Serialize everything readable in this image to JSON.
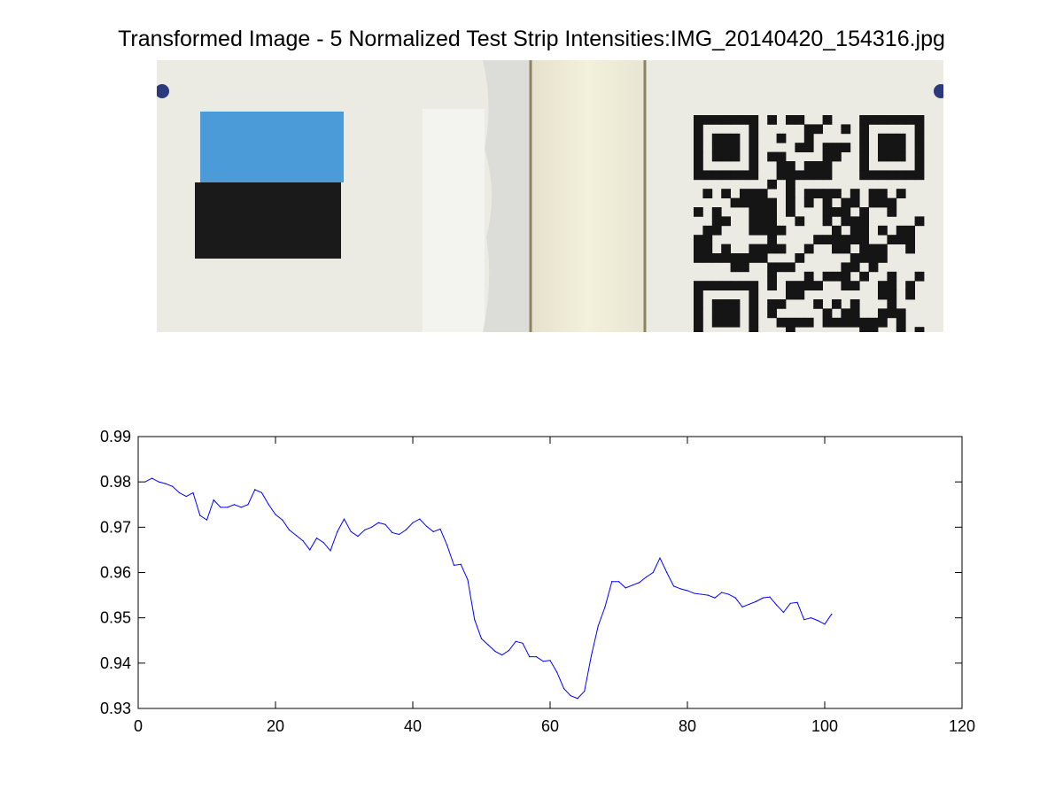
{
  "figure": {
    "title": "Transformed Image - 5 Normalized Test Strip Intensities:IMG_20140420_154316.jpg"
  },
  "photo": {
    "colors": {
      "paper": "#ecebe3",
      "blue_square": "#4a9bd8",
      "black_square": "#1a1a1a",
      "strip_window": "#f2efd9",
      "qr_module": "#151515"
    }
  },
  "chart_data": {
    "type": "line",
    "title": "",
    "xlabel": "",
    "ylabel": "",
    "xlim": [
      0,
      120
    ],
    "ylim": [
      0.93,
      0.99
    ],
    "xticks": [
      "0",
      "20",
      "40",
      "60",
      "80",
      "100",
      "120"
    ],
    "yticks": [
      "0.93",
      "0.94",
      "0.95",
      "0.96",
      "0.97",
      "0.98",
      "0.99"
    ],
    "grid": false,
    "legend": "none",
    "series": [
      {
        "color": "#0000ff",
        "x": [
          1,
          2,
          3,
          4,
          5,
          6,
          7,
          8,
          9,
          10,
          11,
          12,
          13,
          14,
          15,
          16,
          17,
          18,
          19,
          20,
          21,
          22,
          23,
          24,
          25,
          26,
          27,
          28,
          29,
          30,
          31,
          32,
          33,
          34,
          35,
          36,
          37,
          38,
          39,
          40,
          41,
          42,
          43,
          44,
          45,
          46,
          47,
          48,
          49,
          50,
          51,
          52,
          53,
          54,
          55,
          56,
          57,
          58,
          59,
          60,
          61,
          62,
          63,
          64,
          65,
          66,
          67,
          68,
          69,
          70,
          71,
          72,
          73,
          74,
          75,
          76,
          77,
          78,
          79,
          80,
          81,
          82,
          83,
          84,
          85,
          86,
          87,
          88,
          89,
          90,
          91,
          92,
          93,
          94,
          95,
          96,
          97,
          98,
          99,
          100,
          101
        ],
        "y": [
          0.98,
          0.9808,
          0.98,
          0.9796,
          0.979,
          0.9776,
          0.9768,
          0.9776,
          0.9726,
          0.9716,
          0.976,
          0.9744,
          0.9744,
          0.975,
          0.9744,
          0.975,
          0.9783,
          0.9776,
          0.975,
          0.9728,
          0.9716,
          0.9694,
          0.9682,
          0.967,
          0.965,
          0.9676,
          0.9666,
          0.9648,
          0.969,
          0.9718,
          0.969,
          0.968,
          0.9694,
          0.97,
          0.971,
          0.9706,
          0.9688,
          0.9684,
          0.9694,
          0.971,
          0.9718,
          0.9702,
          0.969,
          0.9696,
          0.966,
          0.9616,
          0.9618,
          0.9584,
          0.9496,
          0.9454,
          0.944,
          0.9426,
          0.9418,
          0.9428,
          0.9448,
          0.9444,
          0.9414,
          0.9414,
          0.9404,
          0.9406,
          0.938,
          0.9344,
          0.9328,
          0.9322,
          0.9338,
          0.9416,
          0.9482,
          0.9524,
          0.958,
          0.958,
          0.9566,
          0.9572,
          0.9578,
          0.959,
          0.96,
          0.9632,
          0.96,
          0.957,
          0.9564,
          0.956,
          0.9554,
          0.9552,
          0.955,
          0.9544,
          0.9556,
          0.9552,
          0.9544,
          0.9524,
          0.953,
          0.9536,
          0.9544,
          0.9546,
          0.9528,
          0.9512,
          0.9532,
          0.9534,
          0.9496,
          0.95,
          0.9494,
          0.9486,
          0.9508
        ]
      }
    ]
  }
}
